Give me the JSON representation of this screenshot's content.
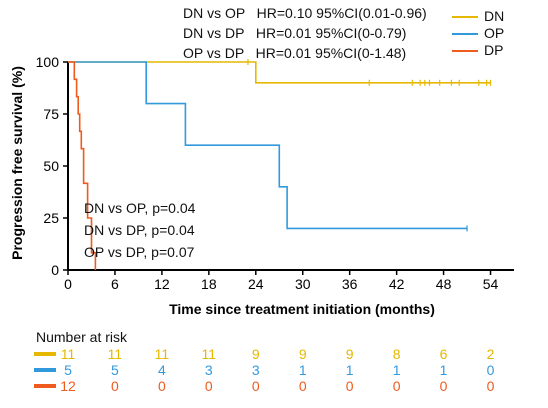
{
  "hazard_ratios": [
    "DN vs OP   HR=0.10 95%CI(0.01-0.96)",
    "DN vs DP   HR=0.01 95%CI(0-0.79)",
    "OP vs DP   HR=0.01 95%CI(0-1.48)"
  ],
  "p_values": [
    "DN vs OP, p=0.04",
    "DN vs DP, p=0.04",
    "OP vs DP, p=0.07"
  ],
  "risk_table": {
    "title": "Number at risk",
    "rows": [
      {
        "color": "#e6b800",
        "counts": [
          "11",
          "11",
          "11",
          "11",
          "9",
          "9",
          "9",
          "8",
          "6",
          "2"
        ]
      },
      {
        "color": "#3399dd",
        "counts": [
          "5",
          "5",
          "4",
          "3",
          "3",
          "1",
          "1",
          "1",
          "1",
          "0"
        ]
      },
      {
        "color": "#ef5b1c",
        "counts": [
          "12",
          "0",
          "0",
          "0",
          "0",
          "0",
          "0",
          "0",
          "0",
          "0"
        ]
      }
    ]
  },
  "chart_data": {
    "type": "line",
    "title": "",
    "xlabel": "Time since treatment initiation (months)",
    "ylabel": "Progression free survival  (%)",
    "xlim": [
      0,
      57
    ],
    "ylim": [
      0,
      100
    ],
    "x_ticks": [
      0,
      6,
      12,
      18,
      24,
      30,
      36,
      42,
      48,
      54
    ],
    "y_ticks": [
      0,
      25,
      50,
      75,
      100
    ],
    "grid": false,
    "legend_position": "top-right",
    "series": [
      {
        "name": "DN",
        "color": "#e6b800",
        "steps": [
          [
            0,
            100
          ],
          [
            24,
            100
          ],
          [
            24,
            90
          ],
          [
            54,
            90
          ]
        ],
        "censor_x": [
          23,
          38.5,
          44,
          45,
          45.6,
          46.2,
          47.5,
          49,
          50,
          52.5,
          53.5,
          54
        ]
      },
      {
        "name": "OP",
        "color": "#3399dd",
        "steps": [
          [
            0,
            100
          ],
          [
            10,
            100
          ],
          [
            10,
            80
          ],
          [
            15,
            80
          ],
          [
            15,
            60
          ],
          [
            27,
            60
          ],
          [
            27,
            40
          ],
          [
            28,
            40
          ],
          [
            28,
            20
          ],
          [
            51,
            20
          ]
        ],
        "censor_x": [
          51
        ]
      },
      {
        "name": "DP",
        "color": "#ef5b1c",
        "steps": [
          [
            0,
            100
          ],
          [
            0.8,
            100
          ],
          [
            0.8,
            91.7
          ],
          [
            1.1,
            91.7
          ],
          [
            1.1,
            83.3
          ],
          [
            1.3,
            83.3
          ],
          [
            1.3,
            75
          ],
          [
            1.5,
            75
          ],
          [
            1.5,
            66.7
          ],
          [
            1.7,
            66.7
          ],
          [
            1.7,
            58.3
          ],
          [
            2.0,
            58.3
          ],
          [
            2.0,
            41.7
          ],
          [
            2.5,
            41.7
          ],
          [
            2.5,
            25
          ],
          [
            3.0,
            25
          ],
          [
            3.0,
            8.3
          ],
          [
            3.5,
            8.3
          ],
          [
            3.5,
            0
          ]
        ],
        "censor_x": []
      }
    ]
  }
}
